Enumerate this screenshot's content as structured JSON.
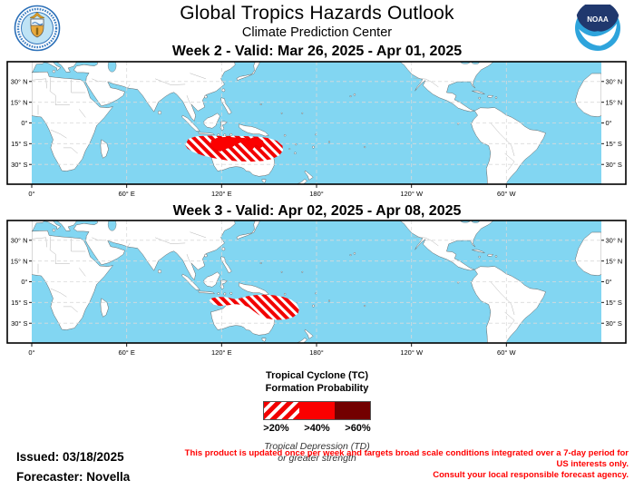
{
  "header": {
    "title": "Global Tropics Hazards Outlook",
    "subtitle": "Climate Prediction Center",
    "noaa_text": "NOAA"
  },
  "map": {
    "ocean_color": "#82d6f2",
    "land_color": "#ffffff",
    "lat_labels": [
      "30° N",
      "15° N",
      "0°",
      "15° S",
      "30° S"
    ],
    "lat_values": [
      30,
      15,
      0,
      -15,
      -30
    ],
    "lon_labels": [
      "0°",
      "60° E",
      "120° E",
      "180°",
      "120° W",
      "60° W"
    ],
    "lon_values": [
      0,
      60,
      120,
      180,
      240,
      300
    ]
  },
  "weeks": [
    {
      "title": "Week 2 - Valid: Mar 26, 2025 - Apr 01, 2025",
      "hazards": [
        {
          "type": "tc_formation",
          "level": ">20%",
          "style": "hatched",
          "points": [
            [
              97,
              -16
            ],
            [
              99,
              -11.5
            ],
            [
              104,
              -9.7
            ],
            [
              112,
              -9.2
            ],
            [
              120,
              -9.5
            ],
            [
              128,
              -9.3
            ],
            [
              136,
              -9.6
            ],
            [
              144,
              -10
            ],
            [
              150,
              -11
            ],
            [
              155,
              -13
            ],
            [
              158.5,
              -16.5
            ],
            [
              158.8,
              -20
            ],
            [
              156.5,
              -23.5
            ],
            [
              152,
              -26
            ],
            [
              146,
              -27.5
            ],
            [
              139,
              -28
            ],
            [
              131,
              -27.8
            ],
            [
              123,
              -27
            ],
            [
              115,
              -25.5
            ],
            [
              108,
              -23.5
            ],
            [
              102,
              -21
            ],
            [
              98.5,
              -18.5
            ]
          ]
        },
        {
          "type": "tc_formation",
          "level": ">40%",
          "style": "solid",
          "points": [
            [
              113.5,
              -13
            ],
            [
              117,
              -11
            ],
            [
              122,
              -10.3
            ],
            [
              127,
              -10.5
            ],
            [
              131,
              -11
            ],
            [
              134.5,
              -11
            ],
            [
              137,
              -12.5
            ],
            [
              139.5,
              -10.8
            ],
            [
              143.5,
              -11
            ],
            [
              146,
              -13
            ],
            [
              147,
              -16
            ],
            [
              144.5,
              -18
            ],
            [
              141.5,
              -16
            ],
            [
              139.5,
              -19
            ],
            [
              137.5,
              -20.5
            ],
            [
              134.5,
              -16
            ],
            [
              132,
              -14
            ],
            [
              129,
              -15.5
            ],
            [
              126.5,
              -17.5
            ],
            [
              123,
              -18.5
            ],
            [
              119,
              -20.5
            ],
            [
              115.5,
              -19
            ],
            [
              113,
              -16
            ]
          ]
        }
      ]
    },
    {
      "title": "Week 3 - Valid: Apr 02, 2025 - Apr 08, 2025",
      "hazards": [
        {
          "type": "tc_formation",
          "level": ">20%",
          "style": "hatched",
          "points": [
            [
              112,
              -13.5
            ],
            [
              114,
              -11.8
            ],
            [
              118,
              -11
            ],
            [
              123,
              -11.2
            ],
            [
              128,
              -12.5
            ],
            [
              132,
              -12
            ],
            [
              136,
              -10.5
            ],
            [
              141,
              -9.7
            ],
            [
              147,
              -9.3
            ],
            [
              153,
              -9.8
            ],
            [
              159,
              -11
            ],
            [
              164,
              -13
            ],
            [
              167.5,
              -16
            ],
            [
              169,
              -19.5
            ],
            [
              168.3,
              -23
            ],
            [
              165,
              -25.8
            ],
            [
              160,
              -27.3
            ],
            [
              154,
              -27.6
            ],
            [
              148,
              -26.5
            ],
            [
              143.5,
              -24
            ],
            [
              140,
              -21
            ],
            [
              137,
              -18.3
            ],
            [
              133.5,
              -16.8
            ],
            [
              129,
              -16.3
            ],
            [
              124,
              -17
            ],
            [
              119,
              -17.5
            ],
            [
              114.5,
              -16.5
            ]
          ]
        }
      ]
    }
  ],
  "legend": {
    "title_line1": "Tropical Cyclone (TC)",
    "title_line2": "Formation Probability",
    "bins": [
      {
        "label": ">20%",
        "style": "hatched"
      },
      {
        "label": ">40%",
        "style": "solid",
        "color": "#fb0000"
      },
      {
        "label": ">60%",
        "style": "solid",
        "color": "#730000"
      }
    ],
    "hatch_color": "#f20000",
    "note_line1": "Tropical Depression (TD)",
    "note_line2": "or greater strength"
  },
  "footer": {
    "issued": "Issued: 03/18/2025",
    "forecaster": "Forecaster: Novella",
    "disclaimer_line1": "This product is updated once per week and targets broad scale conditions integrated over a 7-day period for US interests only.",
    "disclaimer_line2": "Consult your local responsible forecast agency."
  }
}
